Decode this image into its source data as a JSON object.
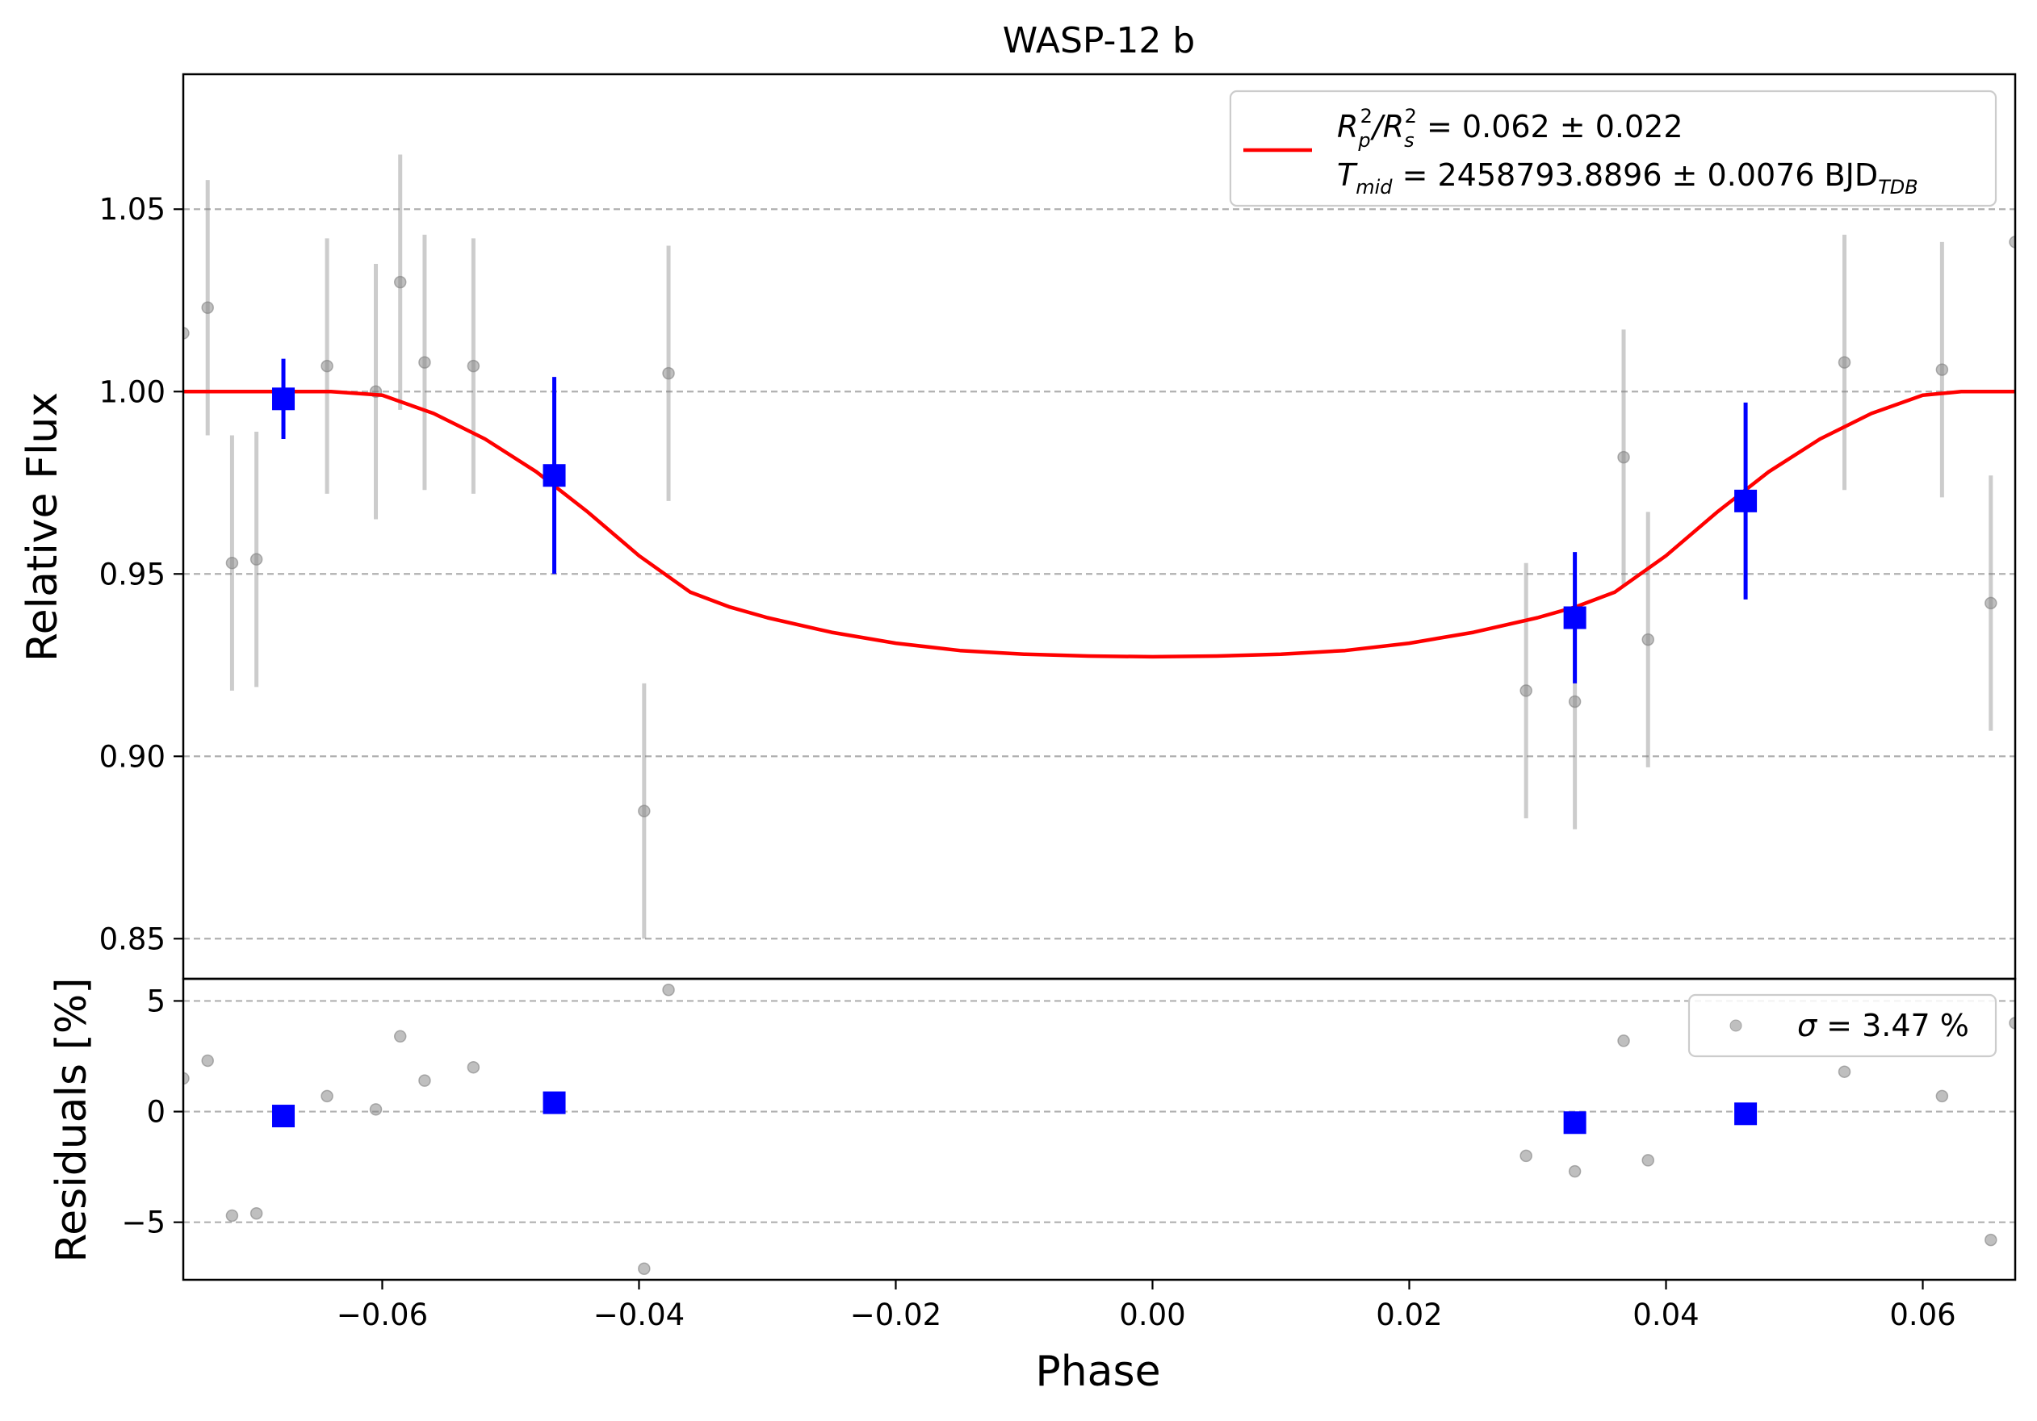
{
  "chart_data": [
    {
      "type": "scatter",
      "panel": "main",
      "title": "WASP-12 b",
      "xlabel": "",
      "ylabel": "Relative Flux",
      "xlim": [
        -0.0755,
        0.0672
      ],
      "ylim": [
        0.839,
        1.087
      ],
      "yticks": [
        0.85,
        0.9,
        0.95,
        1.0,
        1.05
      ],
      "ytick_labels": [
        "0.85",
        "0.90",
        "0.95",
        "1.00",
        "1.05"
      ],
      "grid": "horizontal dashed",
      "legend": {
        "placement": "top-right",
        "line1": {
          "base": "R",
          "sub1": "p",
          "sup1": "2",
          "mid": "/R",
          "sub2": "s",
          "sup2": "2",
          "rest": " = 0.062 ± 0.022"
        },
        "line2": {
          "base": "T",
          "sub1": "mid",
          "rest": " = 2458793.8896 ± 0.0076 BJD",
          "sub2": "TDB"
        }
      },
      "series": [
        {
          "role": "raw",
          "color": "#808080",
          "points": [
            {
              "x": -0.0755,
              "y": 1.016,
              "err": 0.0
            },
            {
              "x": -0.0736,
              "y": 1.023,
              "err": 0.035
            },
            {
              "x": -0.0717,
              "y": 0.953,
              "err": 0.035
            },
            {
              "x": -0.0698,
              "y": 0.954,
              "err": 0.035
            },
            {
              "x": -0.0643,
              "y": 1.007,
              "err": 0.035
            },
            {
              "x": -0.0605,
              "y": 1.0,
              "err": 0.035
            },
            {
              "x": -0.0586,
              "y": 1.03,
              "err": 0.035
            },
            {
              "x": -0.0567,
              "y": 1.008,
              "err": 0.035
            },
            {
              "x": -0.0529,
              "y": 1.007,
              "err": 0.035
            },
            {
              "x": -0.0396,
              "y": 0.885,
              "err": 0.035
            },
            {
              "x": -0.0377,
              "y": 1.005,
              "err": 0.035
            },
            {
              "x": 0.0291,
              "y": 0.918,
              "err": 0.035
            },
            {
              "x": 0.0329,
              "y": 0.915,
              "err": 0.035
            },
            {
              "x": 0.0367,
              "y": 0.982,
              "err": 0.035
            },
            {
              "x": 0.0386,
              "y": 0.932,
              "err": 0.035
            },
            {
              "x": 0.0539,
              "y": 1.008,
              "err": 0.035
            },
            {
              "x": 0.0615,
              "y": 1.006,
              "err": 0.035
            },
            {
              "x": 0.0653,
              "y": 0.942,
              "err": 0.035
            },
            {
              "x": 0.0672,
              "y": 1.041,
              "err": 0.0
            }
          ]
        },
        {
          "role": "binned",
          "color": "#0000ff",
          "points": [
            {
              "x": -0.0677,
              "y": 0.998,
              "err": 0.011
            },
            {
              "x": -0.0466,
              "y": 0.977,
              "err": 0.027
            },
            {
              "x": 0.0329,
              "y": 0.938,
              "err": 0.018
            },
            {
              "x": 0.0462,
              "y": 0.97,
              "err": 0.027
            }
          ]
        },
        {
          "role": "model",
          "color": "#ff0000",
          "x": [
            -0.0755,
            -0.064,
            -0.06,
            -0.056,
            -0.052,
            -0.048,
            -0.044,
            -0.04,
            -0.036,
            -0.033,
            -0.03,
            -0.025,
            -0.02,
            -0.015,
            -0.01,
            -0.005,
            0.0,
            0.005,
            0.01,
            0.015,
            0.02,
            0.025,
            0.03,
            0.033,
            0.036,
            0.04,
            0.044,
            0.048,
            0.052,
            0.056,
            0.06,
            0.063,
            0.0672
          ],
          "y": [
            1.0,
            1.0,
            0.999,
            0.994,
            0.987,
            0.978,
            0.967,
            0.955,
            0.945,
            0.941,
            0.938,
            0.934,
            0.931,
            0.929,
            0.928,
            0.9275,
            0.9273,
            0.9275,
            0.928,
            0.929,
            0.931,
            0.934,
            0.938,
            0.941,
            0.945,
            0.955,
            0.967,
            0.978,
            0.987,
            0.994,
            0.999,
            1.0,
            1.0
          ]
        }
      ]
    },
    {
      "type": "scatter",
      "panel": "residuals",
      "xlabel": "Phase",
      "ylabel": "Residuals [%]",
      "xlim": [
        -0.0755,
        0.0672
      ],
      "ylim": [
        -7.6,
        6.0
      ],
      "xticks": [
        -0.06,
        -0.04,
        -0.02,
        0.0,
        0.02,
        0.04,
        0.06
      ],
      "xtick_labels": [
        "−0.06",
        "−0.04",
        "−0.02",
        "0.00",
        "0.02",
        "0.04",
        "0.06"
      ],
      "yticks": [
        -5,
        0,
        5
      ],
      "ytick_labels": [
        "−5",
        "0",
        "5"
      ],
      "grid": "horizontal dashed",
      "legend": {
        "placement": "top-right",
        "label": {
          "sym": "σ",
          "rest": " = 3.47 %"
        }
      },
      "series": [
        {
          "role": "raw",
          "color": "#808080",
          "points": [
            {
              "x": -0.0755,
              "y": 1.5
            },
            {
              "x": -0.0736,
              "y": 2.3
            },
            {
              "x": -0.0717,
              "y": -4.7
            },
            {
              "x": -0.0698,
              "y": -4.6
            },
            {
              "x": -0.0643,
              "y": 0.7
            },
            {
              "x": -0.0605,
              "y": 0.1
            },
            {
              "x": -0.0586,
              "y": 3.4
            },
            {
              "x": -0.0567,
              "y": 1.4
            },
            {
              "x": -0.0529,
              "y": 2.0
            },
            {
              "x": -0.0396,
              "y": -7.1
            },
            {
              "x": -0.0377,
              "y": 5.5
            },
            {
              "x": 0.0291,
              "y": -2.0
            },
            {
              "x": 0.0329,
              "y": -2.7
            },
            {
              "x": 0.0367,
              "y": 3.2
            },
            {
              "x": 0.0386,
              "y": -2.2
            },
            {
              "x": 0.0539,
              "y": 1.8
            },
            {
              "x": 0.0615,
              "y": 0.7
            },
            {
              "x": 0.0653,
              "y": -5.8
            },
            {
              "x": 0.0672,
              "y": 4.0
            }
          ]
        },
        {
          "role": "binned",
          "color": "#0000ff",
          "points": [
            {
              "x": -0.0677,
              "y": -0.2
            },
            {
              "x": -0.0466,
              "y": 0.4
            },
            {
              "x": 0.0329,
              "y": -0.5
            },
            {
              "x": 0.0462,
              "y": -0.1
            }
          ]
        }
      ]
    }
  ]
}
